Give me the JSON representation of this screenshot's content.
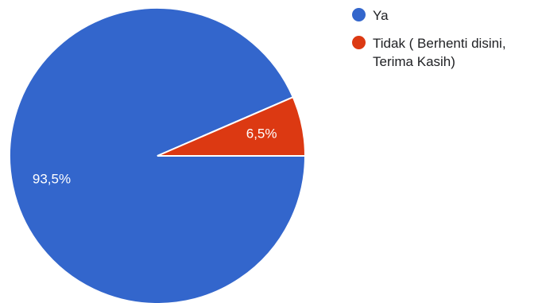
{
  "chart_data": {
    "type": "pie",
    "categories": [
      "Ya",
      "Tidak ( Berhenti disini, Terima Kasih)"
    ],
    "values": [
      93.5,
      6.5
    ],
    "data_labels": [
      "93,5%",
      "6,5%"
    ],
    "colors": [
      "#3366cc",
      "#dc3912"
    ],
    "legend_position": "top-right"
  },
  "legend": {
    "items": [
      {
        "label": "Ya",
        "color": "#3366cc"
      },
      {
        "label": "Tidak ( Berhenti disini, Terima Kasih)",
        "color": "#dc3912"
      }
    ]
  }
}
